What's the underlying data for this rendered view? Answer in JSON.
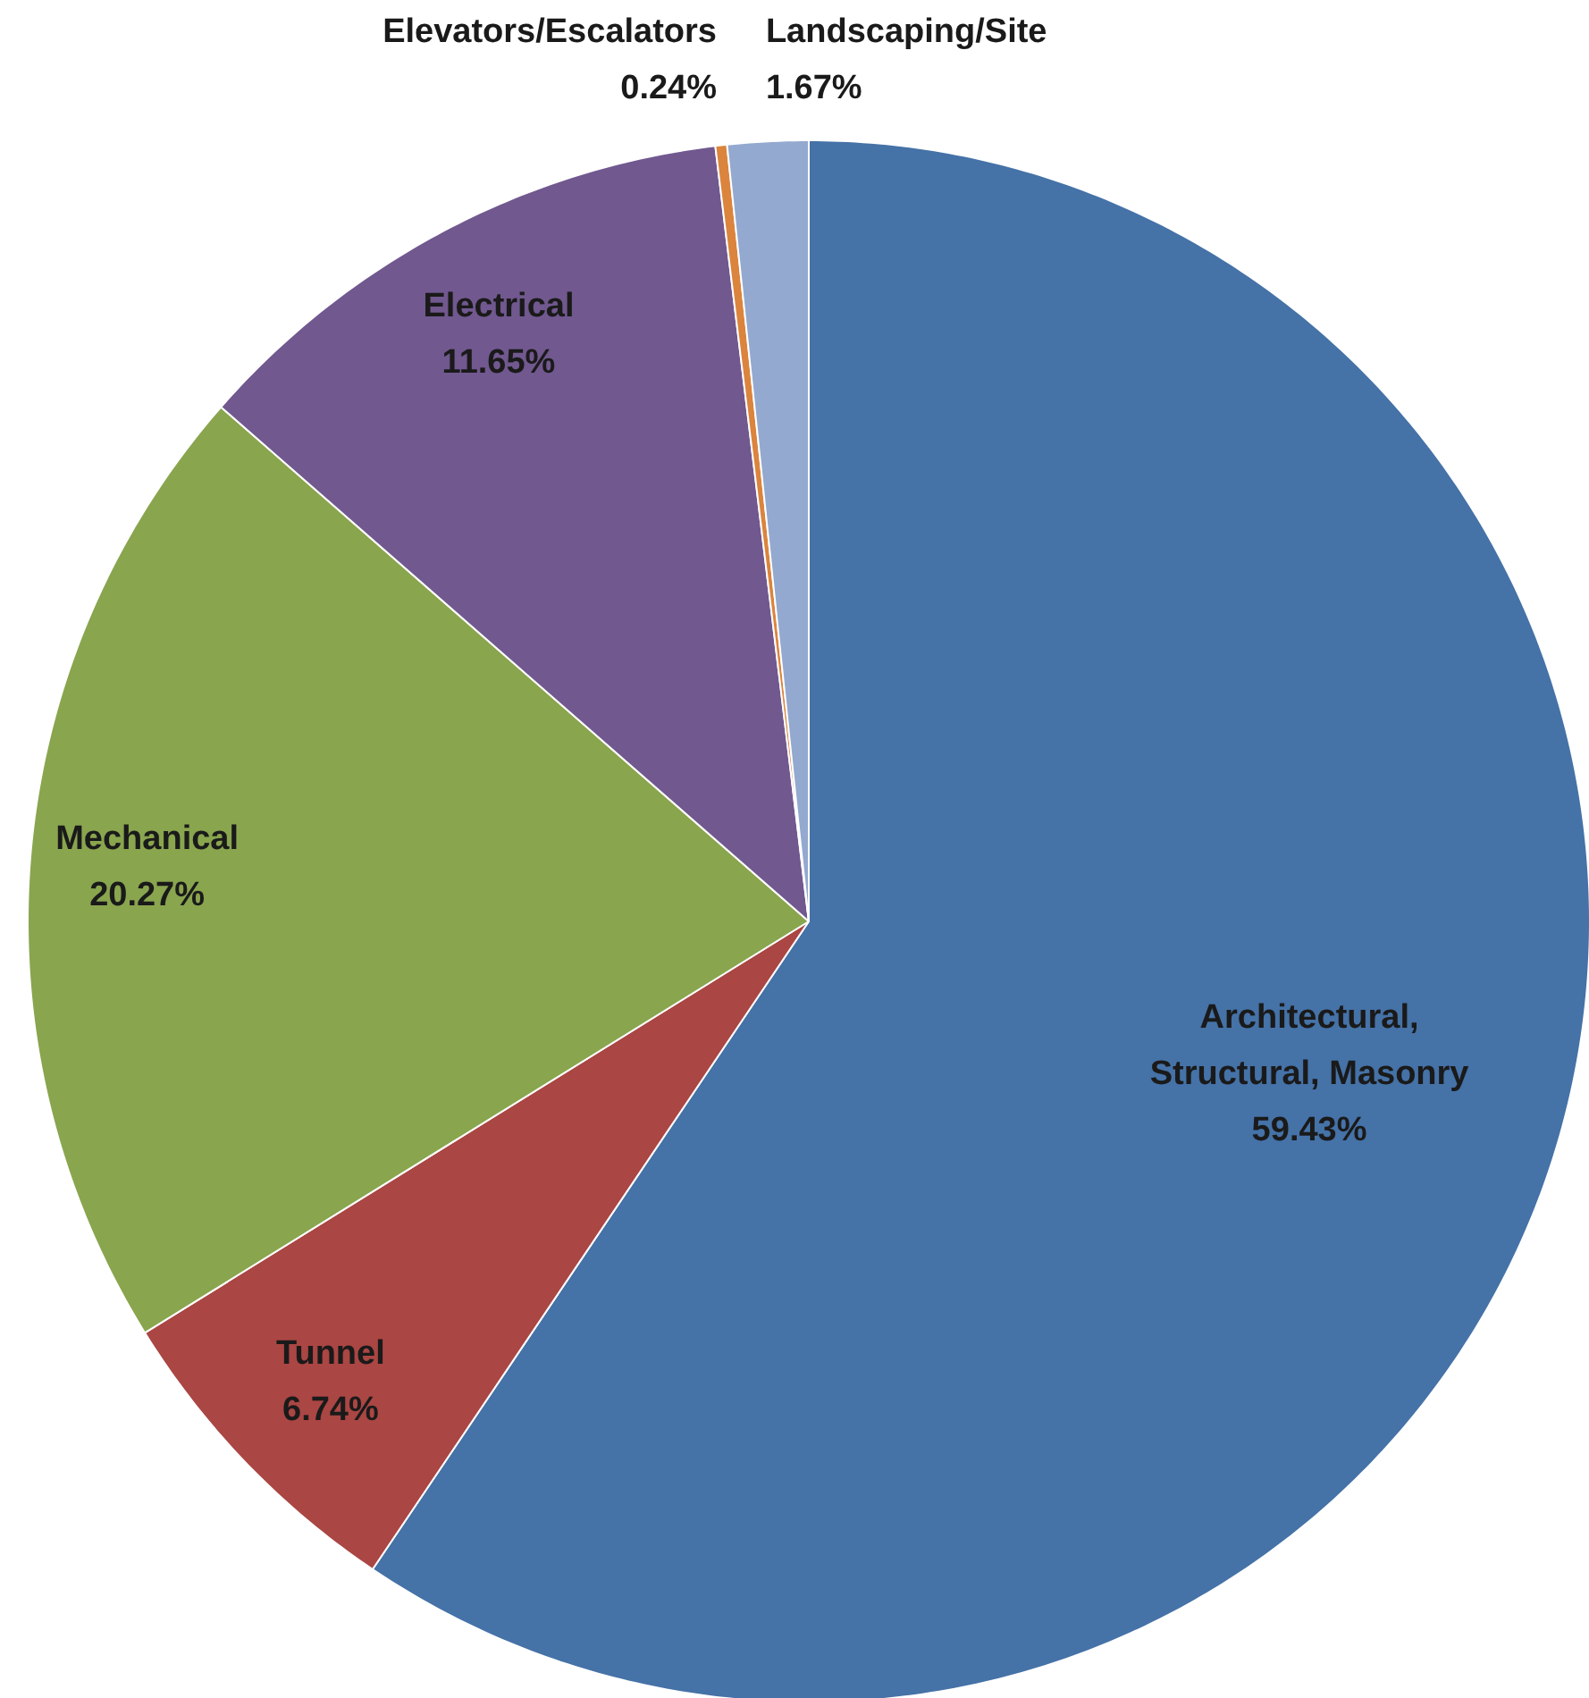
{
  "chart_data": {
    "type": "pie",
    "categories": [
      "Architectural, Structural, Masonry",
      "Tunnel",
      "Mechanical",
      "Electrical",
      "Elevators/Escalators",
      "Landscaping/Site"
    ],
    "values": [
      59.43,
      6.74,
      20.27,
      11.65,
      0.24,
      1.67
    ],
    "colors": [
      "#4572a7",
      "#aa4643",
      "#89a54e",
      "#71588f",
      "#db843d",
      "#93a9cf"
    ],
    "value_labels": [
      "59.43%",
      "6.74%",
      "20.27%",
      "11.65%",
      "0.24%",
      "1.67%"
    ]
  }
}
